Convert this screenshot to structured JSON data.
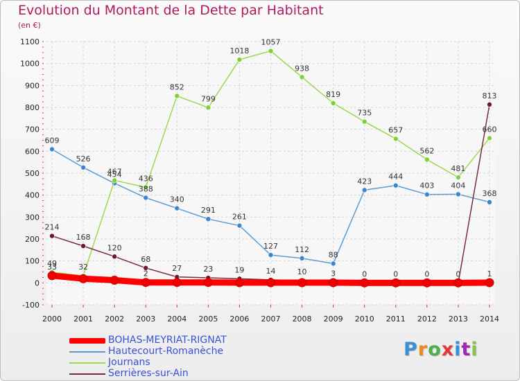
{
  "title": "Evolution du Montant de la Dette par Habitant",
  "subtitle": "(en €)",
  "logo": "Proxiti",
  "chart_data": {
    "type": "line",
    "title": "Evolution du Montant de la Dette par Habitant",
    "ylabel": "(en €)",
    "xlabel": "",
    "x": [
      "2000",
      "2001",
      "2002",
      "2003",
      "2004",
      "2005",
      "2006",
      "2007",
      "2008",
      "2009",
      "2010",
      "2011",
      "2012",
      "2013",
      "2014"
    ],
    "ylim": [
      -100,
      1100
    ],
    "yticks": [
      -100,
      0,
      100,
      200,
      300,
      400,
      500,
      600,
      700,
      800,
      900,
      1000,
      1100
    ],
    "grid": true,
    "legend": "bottom-left",
    "series": [
      {
        "name": "BOHAS-MEYRIAT-RIGNAT",
        "color": "#ff0000",
        "marker_color": "#ee0000",
        "values": [
          33,
          19,
          12,
          2,
          2,
          2,
          1,
          1,
          1,
          1,
          0,
          0,
          0,
          0,
          1
        ],
        "labels": [
          "33",
          "",
          "",
          "2",
          "",
          "",
          "",
          "",
          "",
          "",
          "",
          "",
          "",
          "",
          "1"
        ]
      },
      {
        "name": "Hautecourt-Romanèche",
        "color": "#5a9bd4",
        "marker_color": "#3c86cc",
        "values": [
          609,
          526,
          454,
          388,
          340,
          291,
          261,
          127,
          112,
          88,
          423,
          444,
          403,
          404,
          368
        ],
        "labels": [
          "609",
          "526",
          "454",
          "388",
          "340",
          "291",
          "261",
          "127",
          "112",
          "88",
          "423",
          "444",
          "403",
          "404",
          "368"
        ]
      },
      {
        "name": "Journans",
        "color": "#9ad94f",
        "marker_color": "#7ed03a",
        "values": [
          49,
          32,
          467,
          436,
          852,
          799,
          1018,
          1057,
          938,
          819,
          735,
          657,
          562,
          481,
          660
        ],
        "labels": [
          "49",
          "32",
          "467",
          "436",
          "852",
          "799",
          "1018",
          "1057",
          "938",
          "819",
          "735",
          "657",
          "562",
          "481",
          "660"
        ]
      },
      {
        "name": "Serrières-sur-Ain",
        "color": "#7a2a3a",
        "marker_color": "#6b1a28",
        "values": [
          214,
          168,
          120,
          68,
          27,
          23,
          19,
          14,
          10,
          3,
          0,
          0,
          0,
          0,
          813
        ],
        "labels": [
          "214",
          "168",
          "120",
          "68",
          "27",
          "23",
          "19",
          "14",
          "10",
          "3",
          "0",
          "0",
          "0",
          "0",
          "813"
        ]
      }
    ]
  }
}
